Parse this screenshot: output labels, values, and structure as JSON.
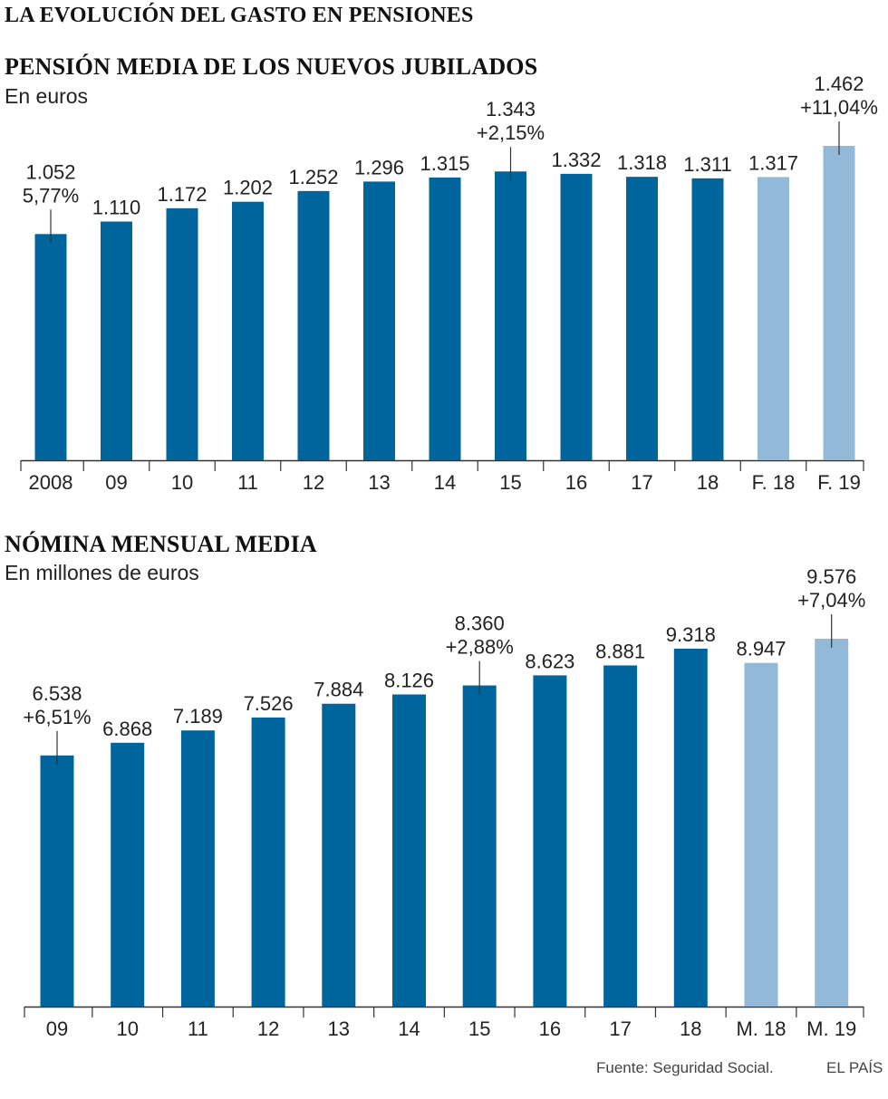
{
  "page_title": "LA EVOLUCIÓN DEL GASTO EN PENSIONES",
  "source": "Fuente: Seguridad Social.",
  "brand": "EL PAÍS",
  "colors": {
    "dark": "#00659c",
    "light": "#93b9d9",
    "text": "#222222",
    "axis": "#333333"
  },
  "chart_data": [
    {
      "type": "bar",
      "title": "PENSIÓN MEDIA DE LOS NUEVOS JUBILADOS",
      "subtitle": "En euros",
      "categories": [
        "2008",
        "09",
        "10",
        "11",
        "12",
        "13",
        "14",
        "15",
        "16",
        "17",
        "18",
        "F. 18",
        "F. 19"
      ],
      "values": [
        1052,
        1110,
        1172,
        1202,
        1252,
        1296,
        1315,
        1343,
        1332,
        1318,
        1311,
        1317,
        1462
      ],
      "value_labels": [
        "1.052",
        "1.110",
        "1.172",
        "1.202",
        "1.252",
        "1.296",
        "1.315",
        "1.343",
        "1.332",
        "1.318",
        "1.311",
        "1.317",
        "1.462"
      ],
      "highlight": [
        false,
        false,
        false,
        false,
        false,
        false,
        false,
        false,
        false,
        false,
        false,
        true,
        true
      ],
      "annotations": [
        {
          "index": 0,
          "lines": [
            "1.052",
            "5,77%"
          ]
        },
        {
          "index": 7,
          "lines": [
            "1.343",
            "+2,15%"
          ]
        },
        {
          "index": 12,
          "lines": [
            "1.462",
            "+11,04%"
          ]
        }
      ],
      "ylim": [
        0,
        1462
      ],
      "grid": false
    },
    {
      "type": "bar",
      "title": "NÓMINA MENSUAL MEDIA",
      "subtitle": "En millones de euros",
      "categories": [
        "09",
        "10",
        "11",
        "12",
        "13",
        "14",
        "15",
        "16",
        "17",
        "18",
        "M. 18",
        "M. 19"
      ],
      "values": [
        6538,
        6868,
        7189,
        7526,
        7884,
        8126,
        8360,
        8623,
        8881,
        9318,
        8947,
        9576
      ],
      "value_labels": [
        "6.538",
        "6.868",
        "7.189",
        "7.526",
        "7.884",
        "8.126",
        "8.360",
        "8.623",
        "8.881",
        "9.318",
        "8.947",
        "9.576"
      ],
      "highlight": [
        false,
        false,
        false,
        false,
        false,
        false,
        false,
        false,
        false,
        false,
        true,
        true
      ],
      "annotations": [
        {
          "index": 0,
          "lines": [
            "6.538",
            "+6,51%"
          ]
        },
        {
          "index": 6,
          "lines": [
            "8.360",
            "+2,88%"
          ]
        },
        {
          "index": 11,
          "lines": [
            "9.576",
            "+7,04%"
          ]
        }
      ],
      "ylim": [
        0,
        9576
      ],
      "grid": false
    }
  ]
}
